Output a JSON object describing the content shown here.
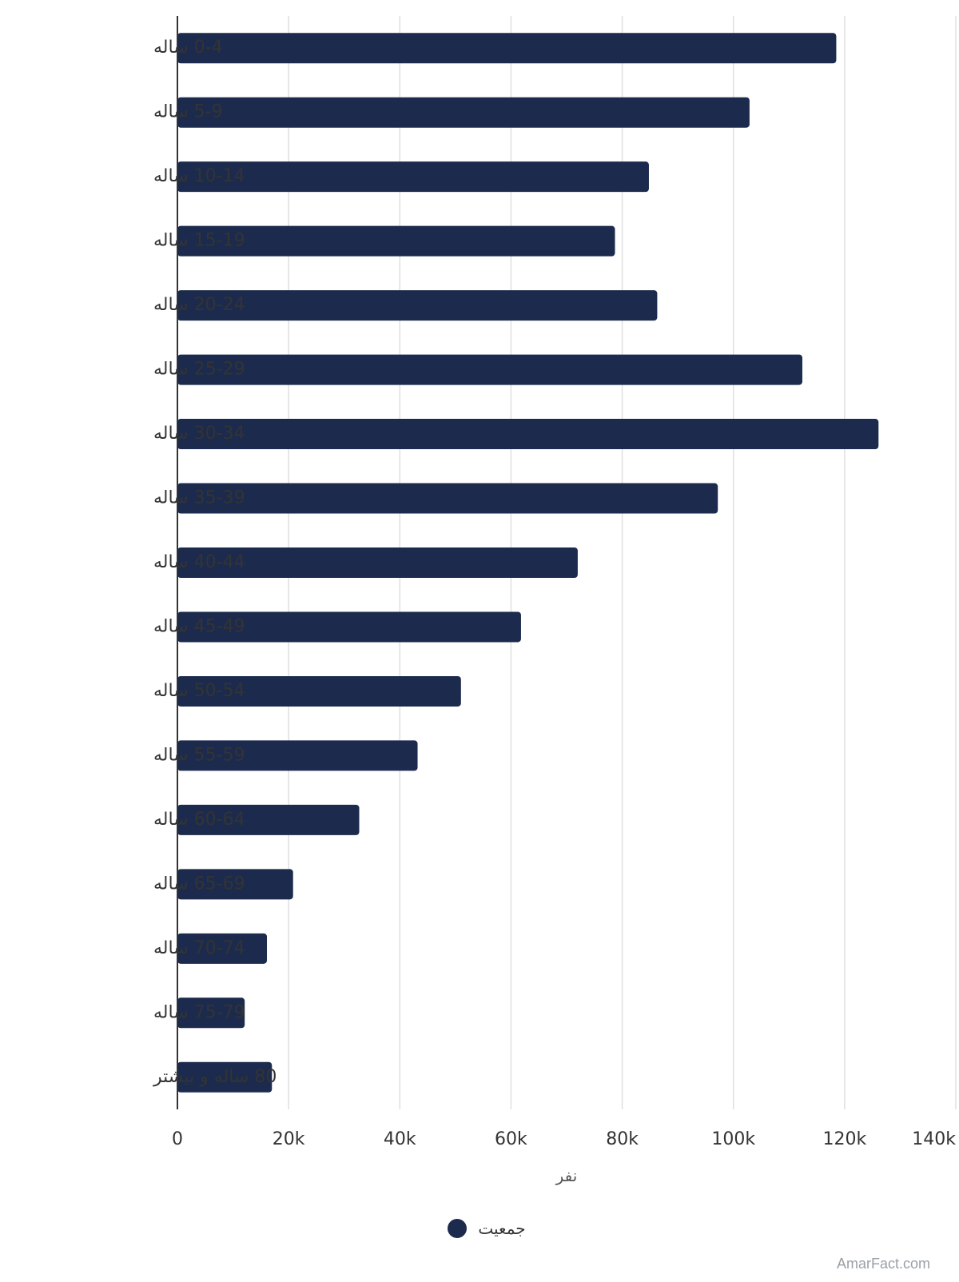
{
  "chart_data": {
    "type": "bar",
    "orientation": "horizontal",
    "categories": [
      "0-4 ساله",
      "5-9 ساله",
      "10-14 ساله",
      "15-19 ساله",
      "20-24 ساله",
      "25-29 ساله",
      "30-34 ساله",
      "35-39 ساله",
      "40-44 ساله",
      "45-49 ساله",
      "50-54 ساله",
      "55-59 ساله",
      "60-64 ساله",
      "65-69 ساله",
      "70-74 ساله",
      "75-79 ساله",
      "80 ساله و بیشتر"
    ],
    "series": [
      {
        "name": "جمعیت",
        "values": [
          118500,
          102900,
          84800,
          78700,
          86300,
          112400,
          126100,
          97200,
          72000,
          61800,
          51000,
          43200,
          32700,
          20800,
          16100,
          12100,
          17000
        ]
      }
    ],
    "xlabel": "نفر",
    "ylabel": "",
    "xlim": [
      0,
      140000
    ],
    "x_ticks": [
      "0",
      "20k",
      "40k",
      "60k",
      "80k",
      "100k",
      "120k",
      "140k"
    ],
    "x_tick_values": [
      0,
      20000,
      40000,
      60000,
      80000,
      100000,
      120000,
      140000
    ],
    "grid": true,
    "legend_position": "bottom",
    "colors": {
      "bar": "#1c2b4d",
      "grid": "#e0e0e0",
      "axis": "#333333",
      "text": "#333333"
    }
  },
  "watermark": "AmarFact.com"
}
